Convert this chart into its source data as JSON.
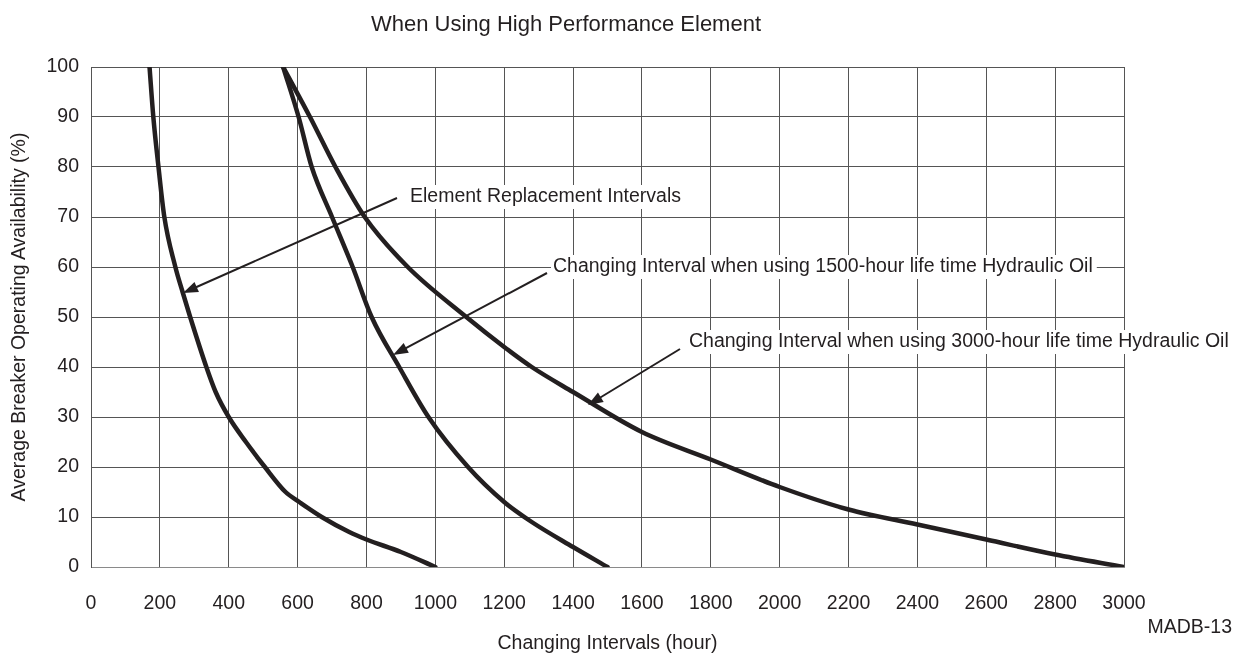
{
  "chart_data": {
    "type": "line",
    "title": "When Using High Performance Element",
    "xlabel": "Changing Intervals (hour)",
    "ylabel": "Average Breaker Operating Availability (%)",
    "series": [
      {
        "color": "#231f20",
        "x": [
          170,
          181,
          196,
          213,
          245,
          266,
          288,
          335,
          362,
          400,
          450,
          505,
          565,
          605,
          670,
          750,
          800,
          900,
          1000
        ],
        "values": [
          100,
          90,
          80,
          70,
          60,
          55,
          50,
          40,
          35,
          30,
          25,
          20,
          15,
          13,
          10,
          7,
          5.5,
          3,
          0
        ]
      },
      {
        "color": "#231f20",
        "x": [
          558,
          603,
          641,
          700,
          760,
          815,
          895,
          980,
          1095,
          1200,
          1280,
          1400,
          1500
        ],
        "values": [
          100,
          90,
          80,
          70,
          60,
          50,
          40,
          30,
          20,
          13,
          9,
          4,
          0
        ]
      },
      {
        "color": "#231f20",
        "x": [
          558,
          636,
          710,
          795,
          920,
          1090,
          1200,
          1280,
          1400,
          1600,
          1800,
          2000,
          2200,
          2400,
          2600,
          2800,
          3000
        ],
        "values": [
          100,
          90,
          80,
          70,
          60,
          50,
          44,
          40,
          35,
          27,
          21.5,
          16,
          11.5,
          8.5,
          5.5,
          2.5,
          0
        ]
      }
    ],
    "annotations": [
      "Element Replacement Intervals",
      "Changing Interval when using 1500-hour life time Hydraulic Oil",
      "Changing Interval when using 3000-hour life time Hydraulic Oil",
      "MADB-13"
    ],
    "xlim": [
      0,
      3000
    ],
    "xticks": [
      0,
      200,
      400,
      600,
      800,
      1000,
      1200,
      1400,
      1600,
      1800,
      2000,
      2200,
      2400,
      2600,
      2800,
      3000
    ],
    "ylim": [
      0,
      100
    ],
    "yticks": [
      0,
      10,
      20,
      30,
      40,
      50,
      60,
      70,
      80,
      90,
      100
    ],
    "grid": true,
    "marker": "none"
  }
}
